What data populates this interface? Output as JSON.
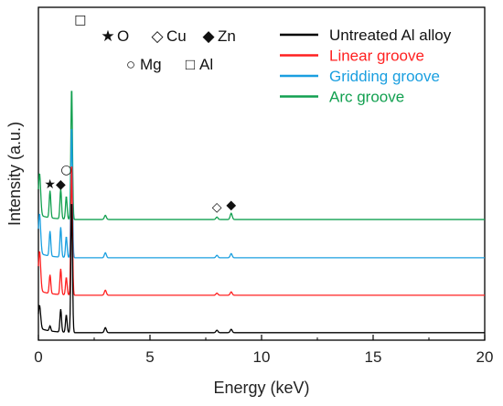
{
  "chart_data": {
    "type": "line",
    "xlabel": "Energy (keV)",
    "ylabel": "Intensity (a.u.)",
    "xlim": [
      0,
      20
    ],
    "x_ticks": [
      0,
      5,
      10,
      15,
      20
    ],
    "x_tick_labels": [
      "0",
      "5",
      "10",
      "15",
      "20"
    ],
    "y_ticks_shown": false,
    "legend_position": "top-right",
    "element_key": [
      {
        "symbol": "★",
        "label": "O"
      },
      {
        "symbol": "◇",
        "label": "Cu"
      },
      {
        "symbol": "◆",
        "label": "Zn"
      },
      {
        "symbol": "○",
        "label": "Mg"
      },
      {
        "symbol": "□",
        "label": "Al"
      }
    ],
    "series": [
      {
        "name": "Untreated Al alloy",
        "color": "#000000",
        "baseline": 0.18,
        "peaks": [
          [
            0.05,
            0.55
          ],
          [
            0.52,
            0.12
          ],
          [
            1.0,
            0.55
          ],
          [
            1.25,
            0.42
          ],
          [
            1.49,
            3.2
          ],
          [
            3.0,
            0.12
          ],
          [
            8.0,
            0.06
          ],
          [
            8.64,
            0.08
          ]
        ]
      },
      {
        "name": "Linear groove",
        "color": "#ff2020",
        "baseline": 1.08,
        "peaks": [
          [
            0.05,
            0.95
          ],
          [
            0.52,
            0.45
          ],
          [
            1.0,
            0.62
          ],
          [
            1.25,
            0.42
          ],
          [
            1.49,
            3.2
          ],
          [
            3.0,
            0.12
          ],
          [
            8.0,
            0.05
          ],
          [
            8.64,
            0.08
          ]
        ]
      },
      {
        "name": "Gridding groove",
        "color": "#1a9fe0",
        "baseline": 1.98,
        "peaks": [
          [
            0.05,
            0.95
          ],
          [
            0.52,
            0.6
          ],
          [
            1.0,
            0.72
          ],
          [
            1.25,
            0.5
          ],
          [
            1.49,
            3.2
          ],
          [
            3.0,
            0.12
          ],
          [
            8.0,
            0.06
          ],
          [
            8.64,
            0.1
          ]
        ]
      },
      {
        "name": "Arc groove",
        "color": "#12a050",
        "baseline": 2.9,
        "peaks": [
          [
            0.05,
            1.0
          ],
          [
            0.52,
            0.65
          ],
          [
            1.0,
            0.72
          ],
          [
            1.25,
            0.55
          ],
          [
            1.49,
            3.2
          ],
          [
            3.0,
            0.1
          ],
          [
            8.0,
            0.06
          ],
          [
            8.64,
            0.15
          ]
        ]
      }
    ],
    "annotations": [
      {
        "symbol": "★",
        "x": 0.52,
        "y": 3.65
      },
      {
        "symbol": "◆",
        "x": 1.0,
        "y": 3.65
      },
      {
        "symbol": "○",
        "x": 1.25,
        "y": 4.0
      },
      {
        "symbol": "□",
        "x": 1.88,
        "y": 7.6
      },
      {
        "symbol": "◇",
        "x": 8.0,
        "y": 3.1
      },
      {
        "symbol": "◆",
        "x": 8.64,
        "y": 3.15
      }
    ]
  }
}
